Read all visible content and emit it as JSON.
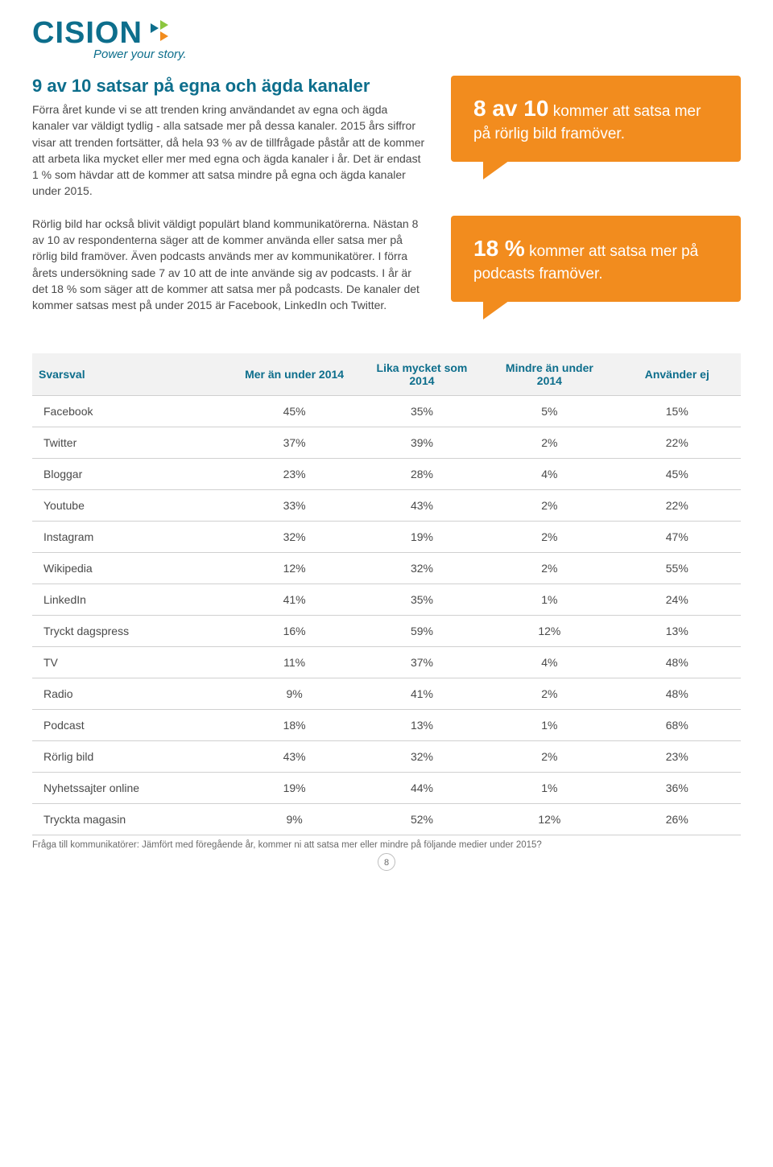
{
  "brand": {
    "name": "CISION",
    "tagline": "Power your story.",
    "logo_color": "#0d6e8c",
    "arrow_colors": [
      "#0d6e8c",
      "#8cc63f",
      "#f28c1e"
    ]
  },
  "heading": "9 av 10 satsar på egna och ägda kanaler",
  "para1": "Förra året kunde vi se att trenden kring användandet av egna och ägda kanaler var väldigt tydlig - alla satsade mer på dessa kanaler. 2015 års siffror visar att trenden fortsätter, då hela 93 % av de tillfrågade påstår att de kommer att arbeta lika mycket eller mer med egna och ägda kanaler i år. Det är endast 1 % som hävdar att de kommer att satsa mindre på egna och ägda kanaler under 2015.",
  "para2": "Rörlig bild har också blivit väldigt populärt bland kommunikatörerna. Nästan 8 av 10 av respondenterna säger att de kommer använda eller satsa mer på rörlig bild framöver. Även podcasts används mer av kommunikatörer. I förra årets undersökning sade 7 av 10 att de inte använde sig av podcasts. I år är det 18 % som säger att de kommer att satsa mer på podcasts. De kanaler det kommer satsas mest på under 2015 är Facebook, LinkedIn och Twitter.",
  "bubble1": {
    "big": "8 av 10",
    "rest": " kommer att satsa mer på rörlig bild framöver."
  },
  "bubble2": {
    "big": "18 %",
    "rest": " kommer att satsa mer på podcasts framöver."
  },
  "bubble_bg": "#f28c1e",
  "table": {
    "columns": [
      "Svarsval",
      "Mer än under 2014",
      "Lika mycket som 2014",
      "Mindre än under 2014",
      "Använder ej"
    ],
    "rows": [
      [
        "Facebook",
        "45%",
        "35%",
        "5%",
        "15%"
      ],
      [
        "Twitter",
        "37%",
        "39%",
        "2%",
        "22%"
      ],
      [
        "Bloggar",
        "23%",
        "28%",
        "4%",
        "45%"
      ],
      [
        "Youtube",
        "33%",
        "43%",
        "2%",
        "22%"
      ],
      [
        "Instagram",
        "32%",
        "19%",
        "2%",
        "47%"
      ],
      [
        "Wikipedia",
        "12%",
        "32%",
        "2%",
        "55%"
      ],
      [
        "LinkedIn",
        "41%",
        "35%",
        "1%",
        "24%"
      ],
      [
        "Tryckt dagspress",
        "16%",
        "59%",
        "12%",
        "13%"
      ],
      [
        "TV",
        "11%",
        "37%",
        "4%",
        "48%"
      ],
      [
        "Radio",
        "9%",
        "41%",
        "2%",
        "48%"
      ],
      [
        "Podcast",
        "18%",
        "13%",
        "1%",
        "68%"
      ],
      [
        "Rörlig bild",
        "43%",
        "32%",
        "2%",
        "23%"
      ],
      [
        "Nyhetssajter online",
        "19%",
        "44%",
        "1%",
        "36%"
      ],
      [
        "Tryckta magasin",
        "9%",
        "52%",
        "12%",
        "26%"
      ]
    ],
    "header_bg": "#f2f2f2",
    "header_color": "#0d6e8c",
    "border_color": "#d0d0d0"
  },
  "footnote": "Fråga till kommunikatörer: Jämfört med föregående år, kommer ni att satsa mer eller mindre på följande medier under 2015?",
  "page_number": "8"
}
